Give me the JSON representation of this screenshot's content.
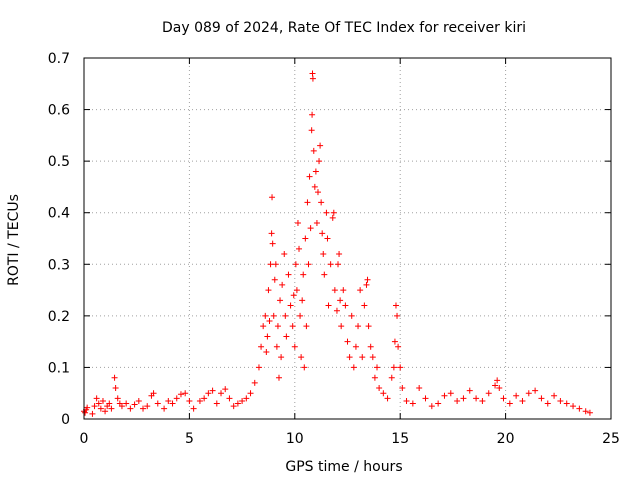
{
  "chart_data": {
    "type": "scatter",
    "title": "Day 089 of 2024, Rate Of TEC Index for receiver kiri",
    "xlabel": "GPS time / hours",
    "ylabel": "ROTI / TECUs",
    "xlim": [
      0,
      25
    ],
    "ylim": [
      0,
      0.7
    ],
    "x_ticks": [
      "0",
      "5",
      "10",
      "15",
      "20",
      "25"
    ],
    "y_ticks": [
      "0",
      "0.1",
      "0.2",
      "0.3",
      "0.4",
      "0.5",
      "0.6",
      "0.7"
    ],
    "grid": true,
    "marker": "+",
    "color": "#ff0000",
    "series": [
      {
        "points": [
          [
            0.0,
            0.015
          ],
          [
            0.05,
            0.012
          ],
          [
            0.1,
            0.018
          ],
          [
            0.15,
            0.022
          ],
          [
            0.4,
            0.01
          ],
          [
            0.5,
            0.025
          ],
          [
            0.6,
            0.04
          ],
          [
            0.7,
            0.03
          ],
          [
            0.8,
            0.02
          ],
          [
            0.9,
            0.035
          ],
          [
            1.0,
            0.015
          ],
          [
            1.1,
            0.025
          ],
          [
            1.2,
            0.03
          ],
          [
            1.3,
            0.02
          ],
          [
            1.45,
            0.08
          ],
          [
            1.5,
            0.06
          ],
          [
            1.6,
            0.04
          ],
          [
            1.7,
            0.03
          ],
          [
            1.8,
            0.025
          ],
          [
            2.0,
            0.03
          ],
          [
            2.2,
            0.02
          ],
          [
            2.4,
            0.028
          ],
          [
            2.6,
            0.035
          ],
          [
            2.8,
            0.02
          ],
          [
            3.0,
            0.025
          ],
          [
            3.2,
            0.045
          ],
          [
            3.3,
            0.05
          ],
          [
            3.5,
            0.03
          ],
          [
            3.8,
            0.02
          ],
          [
            4.0,
            0.035
          ],
          [
            4.2,
            0.03
          ],
          [
            4.4,
            0.04
          ],
          [
            4.6,
            0.048
          ],
          [
            4.8,
            0.05
          ],
          [
            5.0,
            0.035
          ],
          [
            5.2,
            0.02
          ],
          [
            5.5,
            0.035
          ],
          [
            5.7,
            0.04
          ],
          [
            5.9,
            0.05
          ],
          [
            6.1,
            0.055
          ],
          [
            6.3,
            0.03
          ],
          [
            6.5,
            0.05
          ],
          [
            6.7,
            0.058
          ],
          [
            6.9,
            0.04
          ],
          [
            7.1,
            0.025
          ],
          [
            7.3,
            0.03
          ],
          [
            7.5,
            0.035
          ],
          [
            7.7,
            0.04
          ],
          [
            7.9,
            0.05
          ],
          [
            8.1,
            0.07
          ],
          [
            8.3,
            0.1
          ],
          [
            8.4,
            0.14
          ],
          [
            8.5,
            0.18
          ],
          [
            8.6,
            0.2
          ],
          [
            8.65,
            0.13
          ],
          [
            8.7,
            0.16
          ],
          [
            8.75,
            0.25
          ],
          [
            8.8,
            0.19
          ],
          [
            8.85,
            0.3
          ],
          [
            8.9,
            0.36
          ],
          [
            8.92,
            0.43
          ],
          [
            8.95,
            0.34
          ],
          [
            9.0,
            0.2
          ],
          [
            9.05,
            0.27
          ],
          [
            9.1,
            0.3
          ],
          [
            9.15,
            0.14
          ],
          [
            9.2,
            0.18
          ],
          [
            9.25,
            0.08
          ],
          [
            9.3,
            0.23
          ],
          [
            9.35,
            0.12
          ],
          [
            9.4,
            0.26
          ],
          [
            9.5,
            0.32
          ],
          [
            9.55,
            0.2
          ],
          [
            9.6,
            0.16
          ],
          [
            9.7,
            0.28
          ],
          [
            9.8,
            0.22
          ],
          [
            9.9,
            0.18
          ],
          [
            9.95,
            0.24
          ],
          [
            10.0,
            0.14
          ],
          [
            10.05,
            0.3
          ],
          [
            10.1,
            0.25
          ],
          [
            10.15,
            0.38
          ],
          [
            10.2,
            0.33
          ],
          [
            10.25,
            0.2
          ],
          [
            10.3,
            0.12
          ],
          [
            10.35,
            0.23
          ],
          [
            10.4,
            0.28
          ],
          [
            10.45,
            0.1
          ],
          [
            10.5,
            0.35
          ],
          [
            10.55,
            0.18
          ],
          [
            10.6,
            0.42
          ],
          [
            10.65,
            0.3
          ],
          [
            10.7,
            0.47
          ],
          [
            10.75,
            0.37
          ],
          [
            10.8,
            0.56
          ],
          [
            10.82,
            0.59
          ],
          [
            10.84,
            0.67
          ],
          [
            10.86,
            0.66
          ],
          [
            10.9,
            0.52
          ],
          [
            10.95,
            0.45
          ],
          [
            11.0,
            0.48
          ],
          [
            11.05,
            0.38
          ],
          [
            11.1,
            0.44
          ],
          [
            11.15,
            0.5
          ],
          [
            11.2,
            0.53
          ],
          [
            11.25,
            0.42
          ],
          [
            11.3,
            0.36
          ],
          [
            11.35,
            0.32
          ],
          [
            11.4,
            0.28
          ],
          [
            11.5,
            0.4
          ],
          [
            11.55,
            0.35
          ],
          [
            11.6,
            0.22
          ],
          [
            11.7,
            0.3
          ],
          [
            11.8,
            0.39
          ],
          [
            11.85,
            0.4
          ],
          [
            11.9,
            0.25
          ],
          [
            12.0,
            0.21
          ],
          [
            12.05,
            0.3
          ],
          [
            12.1,
            0.32
          ],
          [
            12.15,
            0.23
          ],
          [
            12.2,
            0.18
          ],
          [
            12.3,
            0.25
          ],
          [
            12.4,
            0.22
          ],
          [
            12.5,
            0.15
          ],
          [
            12.6,
            0.12
          ],
          [
            12.7,
            0.2
          ],
          [
            12.8,
            0.1
          ],
          [
            12.9,
            0.14
          ],
          [
            13.0,
            0.18
          ],
          [
            13.1,
            0.25
          ],
          [
            13.2,
            0.12
          ],
          [
            13.3,
            0.22
          ],
          [
            13.4,
            0.26
          ],
          [
            13.45,
            0.27
          ],
          [
            13.5,
            0.18
          ],
          [
            13.6,
            0.14
          ],
          [
            13.7,
            0.12
          ],
          [
            13.8,
            0.08
          ],
          [
            13.9,
            0.1
          ],
          [
            14.0,
            0.06
          ],
          [
            14.2,
            0.05
          ],
          [
            14.4,
            0.04
          ],
          [
            14.6,
            0.08
          ],
          [
            14.7,
            0.1
          ],
          [
            14.75,
            0.15
          ],
          [
            14.8,
            0.22
          ],
          [
            14.85,
            0.2
          ],
          [
            14.9,
            0.14
          ],
          [
            15.0,
            0.1
          ],
          [
            15.1,
            0.06
          ],
          [
            15.3,
            0.035
          ],
          [
            15.6,
            0.03
          ],
          [
            15.9,
            0.06
          ],
          [
            16.2,
            0.04
          ],
          [
            16.5,
            0.025
          ],
          [
            16.8,
            0.03
          ],
          [
            17.1,
            0.045
          ],
          [
            17.4,
            0.05
          ],
          [
            17.7,
            0.035
          ],
          [
            18.0,
            0.04
          ],
          [
            18.3,
            0.055
          ],
          [
            18.6,
            0.04
          ],
          [
            18.9,
            0.035
          ],
          [
            19.2,
            0.05
          ],
          [
            19.5,
            0.065
          ],
          [
            19.6,
            0.075
          ],
          [
            19.7,
            0.06
          ],
          [
            19.9,
            0.04
          ],
          [
            20.2,
            0.03
          ],
          [
            20.5,
            0.045
          ],
          [
            20.8,
            0.035
          ],
          [
            21.1,
            0.05
          ],
          [
            21.4,
            0.055
          ],
          [
            21.7,
            0.04
          ],
          [
            22.0,
            0.03
          ],
          [
            22.3,
            0.045
          ],
          [
            22.6,
            0.035
          ],
          [
            22.9,
            0.03
          ],
          [
            23.2,
            0.025
          ],
          [
            23.5,
            0.02
          ],
          [
            23.8,
            0.015
          ],
          [
            24.0,
            0.012
          ]
        ]
      }
    ]
  }
}
